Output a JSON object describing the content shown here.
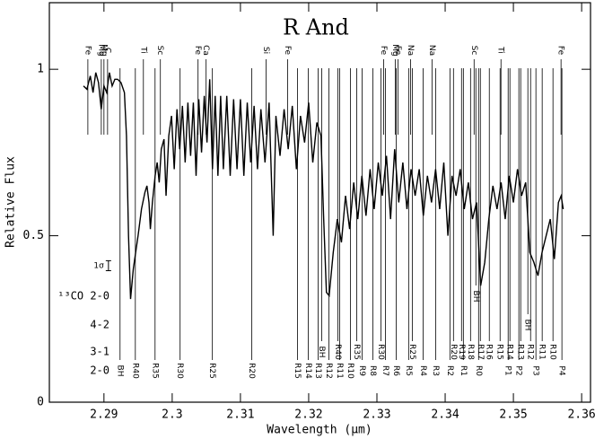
{
  "chart_data": {
    "type": "line",
    "title": "R And",
    "xlabel": "Wavelength (μm)",
    "ylabel": "Relative Flux",
    "xlim": [
      2.282,
      2.3613
    ],
    "ylim": [
      0,
      1.2
    ],
    "xticks": [
      2.29,
      2.3,
      2.31,
      2.32,
      2.33,
      2.34,
      2.35,
      2.36
    ],
    "yticks": [
      0,
      0.5,
      1
    ],
    "color": "#000000",
    "x": [
      2.287,
      2.2875,
      2.288,
      2.2884,
      2.2888,
      2.2892,
      2.2896,
      2.29,
      2.2904,
      2.2908,
      2.2912,
      2.2916,
      2.292,
      2.2925,
      2.293,
      2.2933,
      2.2936,
      2.2939,
      2.2943,
      2.295,
      2.2955,
      2.296,
      2.2963,
      2.2966,
      2.2968,
      2.2971,
      2.2975,
      2.2978,
      2.2981,
      2.2984,
      2.2988,
      2.2991,
      2.2995,
      2.2999,
      2.3003,
      2.3007,
      2.3011,
      2.3015,
      2.3019,
      2.3023,
      2.3027,
      2.3031,
      2.3035,
      2.3039,
      2.3043,
      2.3047,
      2.3051,
      2.3055,
      2.3059,
      2.3063,
      2.3067,
      2.3071,
      2.3075,
      2.308,
      2.3085,
      2.309,
      2.3095,
      2.31,
      2.3105,
      2.311,
      2.3115,
      2.312,
      2.3125,
      2.313,
      2.3136,
      2.3142,
      2.3148,
      2.3152,
      2.3158,
      2.3164,
      2.317,
      2.3176,
      2.3182,
      2.3188,
      2.3194,
      2.32,
      2.3206,
      2.3212,
      2.3218,
      2.3222,
      2.3226,
      2.323,
      2.3236,
      2.3242,
      2.3248,
      2.3254,
      2.326,
      2.3266,
      2.3272,
      2.3278,
      2.3284,
      2.329,
      2.3296,
      2.3302,
      2.3308,
      2.3314,
      2.332,
      2.3326,
      2.3332,
      2.3338,
      2.3344,
      2.335,
      2.3356,
      2.3362,
      2.3368,
      2.3374,
      2.338,
      2.3386,
      2.3392,
      2.3398,
      2.3404,
      2.341,
      2.3416,
      2.3422,
      2.3428,
      2.3434,
      2.344,
      2.3446,
      2.3452,
      2.3458,
      2.3464,
      2.347,
      2.3476,
      2.3482,
      2.3488,
      2.3494,
      2.35,
      2.3506,
      2.3512,
      2.3518,
      2.3524,
      2.353,
      2.3536,
      2.3542,
      2.3548,
      2.3554,
      2.356,
      2.3566,
      2.357,
      2.3573
    ],
    "values": [
      0.95,
      0.94,
      0.98,
      0.93,
      0.99,
      0.96,
      0.88,
      0.95,
      0.93,
      0.99,
      0.95,
      0.97,
      0.97,
      0.96,
      0.93,
      0.8,
      0.5,
      0.31,
      0.4,
      0.5,
      0.58,
      0.63,
      0.65,
      0.6,
      0.52,
      0.6,
      0.68,
      0.72,
      0.66,
      0.76,
      0.79,
      0.62,
      0.8,
      0.86,
      0.7,
      0.88,
      0.76,
      0.89,
      0.72,
      0.9,
      0.74,
      0.9,
      0.68,
      0.91,
      0.75,
      0.92,
      0.78,
      0.97,
      0.7,
      0.92,
      0.68,
      0.92,
      0.7,
      0.92,
      0.68,
      0.91,
      0.7,
      0.91,
      0.68,
      0.9,
      0.72,
      0.89,
      0.7,
      0.88,
      0.72,
      0.9,
      0.5,
      0.86,
      0.74,
      0.88,
      0.76,
      0.89,
      0.7,
      0.86,
      0.78,
      0.9,
      0.72,
      0.84,
      0.8,
      0.55,
      0.33,
      0.32,
      0.45,
      0.55,
      0.48,
      0.62,
      0.52,
      0.66,
      0.55,
      0.68,
      0.56,
      0.7,
      0.58,
      0.72,
      0.62,
      0.74,
      0.55,
      0.76,
      0.6,
      0.72,
      0.58,
      0.7,
      0.62,
      0.7,
      0.56,
      0.68,
      0.6,
      0.7,
      0.58,
      0.72,
      0.5,
      0.68,
      0.62,
      0.7,
      0.58,
      0.66,
      0.55,
      0.6,
      0.35,
      0.42,
      0.55,
      0.65,
      0.58,
      0.66,
      0.55,
      0.68,
      0.6,
      0.7,
      0.62,
      0.66,
      0.45,
      0.42,
      0.38,
      0.45,
      0.5,
      0.55,
      0.43,
      0.6,
      0.62,
      0.58
    ],
    "atomic_lines": [
      {
        "label": "Fe",
        "x": 2.28764
      },
      {
        "label": "Mg",
        "x": 2.28961
      },
      {
        "label": "Mg",
        "x": 2.29
      },
      {
        "label": "C",
        "x": 2.29053
      },
      {
        "label": "Ti",
        "x": 2.29578
      },
      {
        "label": "Sc",
        "x": 2.29827
      },
      {
        "label": "Fe",
        "x": 2.30379
      },
      {
        "label": "Ca",
        "x": 2.30497
      },
      {
        "label": "Si",
        "x": 2.31377
      },
      {
        "label": "Fe",
        "x": 2.31692
      },
      {
        "label": "Fe",
        "x": 2.33098
      },
      {
        "label": "Mg",
        "x": 2.33268
      },
      {
        "label": "Fe",
        "x": 2.33308
      },
      {
        "label": "Na",
        "x": 2.33492
      },
      {
        "label": "Na",
        "x": 2.33807
      },
      {
        "label": "Sc",
        "x": 2.34424
      },
      {
        "label": "Ti",
        "x": 2.34818
      },
      {
        "label": "Fe",
        "x": 2.35698
      }
    ],
    "band_rows": [
      {
        "label": "2-0",
        "lines": [
          {
            "label": "BH",
            "x": 2.29236
          },
          {
            "label": "R40",
            "x": 2.2946
          },
          {
            "label": "R35",
            "x": 2.29749
          },
          {
            "label": "R30",
            "x": 2.30116
          },
          {
            "label": "R25",
            "x": 2.30589
          },
          {
            "label": "R20",
            "x": 2.31167
          },
          {
            "label": "R15",
            "x": 2.31837
          },
          {
            "label": "R14",
            "x": 2.31995
          },
          {
            "label": "R13",
            "x": 2.32139
          },
          {
            "label": "R12",
            "x": 2.32297
          },
          {
            "label": "R11",
            "x": 2.32454
          },
          {
            "label": "R10",
            "x": 2.32612
          },
          {
            "label": "R9",
            "x": 2.32783
          },
          {
            "label": "R8",
            "x": 2.3294
          },
          {
            "label": "R7",
            "x": 2.33124
          },
          {
            "label": "R6",
            "x": 2.33282
          },
          {
            "label": "R5",
            "x": 2.33465
          },
          {
            "label": "R4",
            "x": 2.33676
          },
          {
            "label": "R3",
            "x": 2.3386
          },
          {
            "label": "R2",
            "x": 2.3407
          },
          {
            "label": "R1",
            "x": 2.34267
          },
          {
            "label": "R0",
            "x": 2.3449
          },
          {
            "label": "P1",
            "x": 2.34923
          },
          {
            "label": "P2",
            "x": 2.3508
          },
          {
            "label": "P3",
            "x": 2.3533
          },
          {
            "label": "P4",
            "x": 2.35711
          }
        ]
      },
      {
        "label": "3-1",
        "lines": [
          {
            "label": "BH",
            "x": 2.32191
          },
          {
            "label": "R40",
            "x": 2.32428
          },
          {
            "label": "R35",
            "x": 2.32704
          },
          {
            "label": "R30",
            "x": 2.33058
          },
          {
            "label": "R25",
            "x": 2.33518
          },
          {
            "label": "R20",
            "x": 2.34122
          },
          {
            "label": "R19",
            "x": 2.3424
          },
          {
            "label": "R18",
            "x": 2.34372
          },
          {
            "label": "R17",
            "x": 2.34516
          },
          {
            "label": "R16",
            "x": 2.34647
          },
          {
            "label": "R15",
            "x": 2.34805
          },
          {
            "label": "R14",
            "x": 2.34949
          },
          {
            "label": "R13",
            "x": 2.35107
          },
          {
            "label": "R12",
            "x": 2.35252
          },
          {
            "label": "R11",
            "x": 2.35422
          },
          {
            "label": "R10",
            "x": 2.3558
          }
        ]
      },
      {
        "label": "4-2",
        "lines": [
          {
            "label": "BH",
            "x": 2.35212
          }
        ]
      },
      {
        "label": "¹³CO 2-0",
        "lines": [
          {
            "label": "BH",
            "x": 2.3445
          }
        ]
      }
    ],
    "error_bar": {
      "label": "1σ",
      "x": 2.29066,
      "y": 0.41,
      "err": 0.015
    }
  }
}
